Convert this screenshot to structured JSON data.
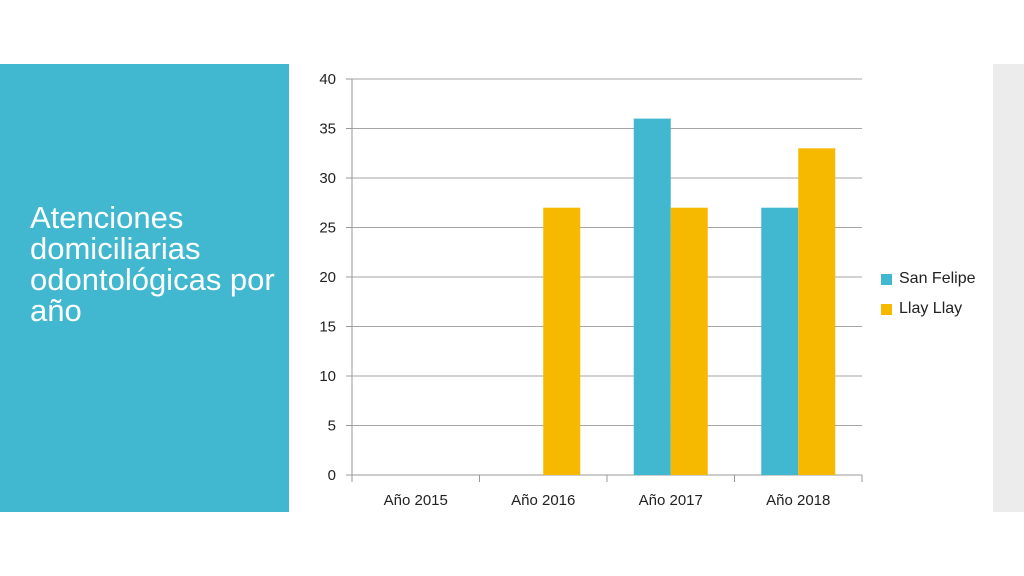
{
  "slide": {
    "title": "Atenciones domiciliarias odontológicas por año",
    "accent_color": "#41b8d0",
    "side_strip_color": "#ececec"
  },
  "chart_data": {
    "type": "bar",
    "title": "",
    "xlabel": "",
    "ylabel": "",
    "categories": [
      "Año 2015",
      "Año 2016",
      "Año 2017",
      "Año 2018"
    ],
    "series": [
      {
        "name": "San Felipe",
        "color": "#41b8d0",
        "values": [
          0,
          0,
          36,
          27
        ]
      },
      {
        "name": "Llay Llay",
        "color": "#f7b800",
        "values": [
          0,
          27,
          27,
          33
        ]
      }
    ],
    "ylim": [
      0,
      40
    ],
    "yticks": [
      "0",
      "5",
      "10",
      "15",
      "20",
      "25",
      "30",
      "35",
      "40"
    ],
    "grid": true,
    "legend_position": "right"
  }
}
